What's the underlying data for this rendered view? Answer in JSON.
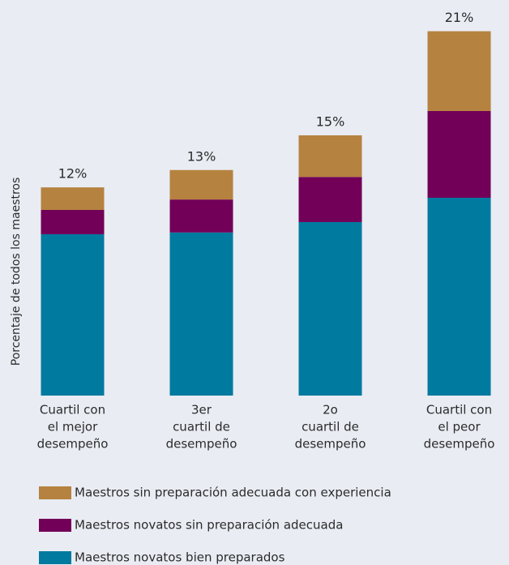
{
  "chart_data": {
    "type": "stacked_bar",
    "y_label": "Porcentaje de todos los maestros",
    "categories": [
      [
        "Cuartil con",
        "el mejor",
        "desempeño"
      ],
      [
        "3er",
        "cuartil de",
        "desempeño"
      ],
      [
        "2o",
        "cuartil de",
        "desempeño"
      ],
      [
        "Cuartil con",
        "el peor",
        "desempeño"
      ]
    ],
    "series": [
      {
        "name": "Maestros novatos bien preparados",
        "color": "#007a9f",
        "values": [
          9.3,
          9.4,
          10.0,
          11.4
        ]
      },
      {
        "name": "Maestros novatos sin preparación adecuada",
        "color": "#720058",
        "values": [
          1.4,
          1.9,
          2.6,
          5.0
        ]
      },
      {
        "name": "Maestros sin preparación adecuada con experiencia",
        "color": "#b5823f",
        "values": [
          1.3,
          1.7,
          2.4,
          4.6
        ]
      }
    ],
    "totals": [
      12,
      13,
      15,
      21
    ],
    "total_labels": [
      "12%",
      "13%",
      "15%",
      "21%"
    ],
    "ylim": [
      0,
      22.8
    ]
  }
}
